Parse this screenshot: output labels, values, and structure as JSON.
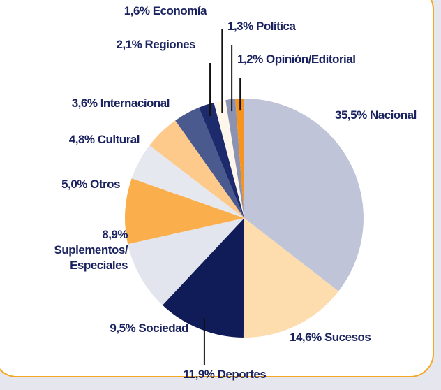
{
  "chart_data": {
    "type": "pie",
    "categories": [
      "Nacional",
      "Sucesos",
      "Deportes",
      "Sociedad",
      "Suplementos/ Especiales",
      "Otros",
      "Cultural",
      "Internacional",
      "Regiones",
      "Economía",
      "Política",
      "Opinión/Editorial"
    ],
    "values": [
      35.5,
      14.6,
      11.9,
      9.5,
      8.9,
      5.0,
      4.8,
      3.6,
      2.1,
      1.6,
      1.3,
      1.2
    ],
    "value_labels": [
      "35,5%",
      "14,6%",
      "11,9%",
      "9,5%",
      "8,9%",
      "5,0%",
      "4,8%",
      "3,6%",
      "2,1%",
      "1,6%",
      "1,3%",
      "1,2%"
    ],
    "colors": [
      "#c0c4d9",
      "#fddcae",
      "#0f1c57",
      "#e3e5ee",
      "#fbaf4c",
      "#e6e8f0",
      "#fdca8c",
      "#4a5a8f",
      "#1d2a6b",
      "#fdf6ea",
      "#8c92b2",
      "#f7941d"
    ]
  }
}
